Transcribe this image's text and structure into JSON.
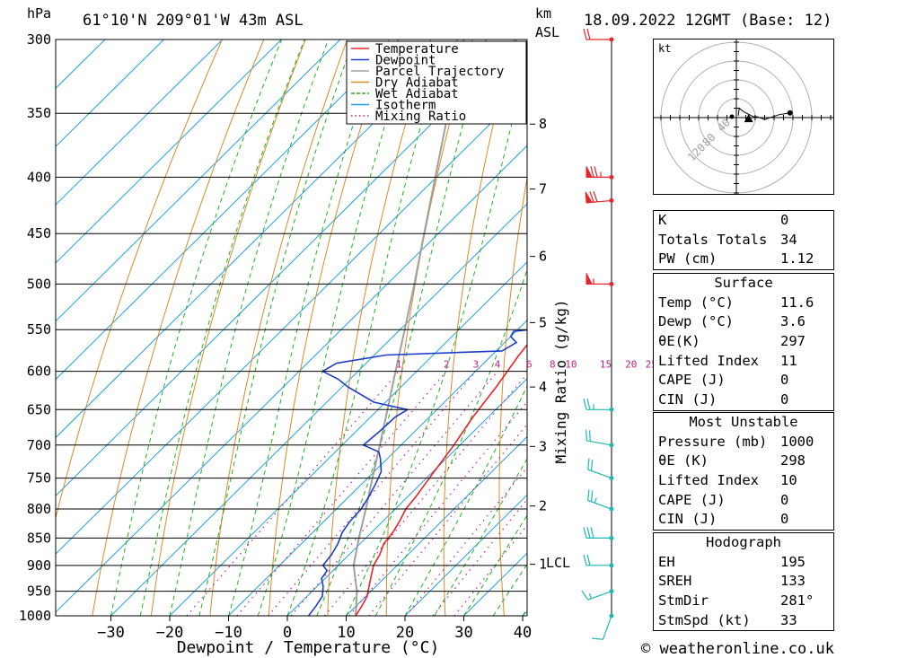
{
  "header": {
    "pressure_unit": "hPa",
    "location": "61°10'N  209°01'W  43m  ASL",
    "height_unit_km": "km",
    "height_unit_asl": "ASL",
    "datetime": "18.09.2022  12GMT  (Base: 12)"
  },
  "chart_data": {
    "type": "line",
    "title": "",
    "xlabel": "Dewpoint / Temperature (°C)",
    "ylabel": "hPa",
    "right_label": "Mixing Ratio (g/kg)",
    "y_scale": "log",
    "ylim": [
      1000,
      300
    ],
    "xlim": [
      -40,
      40
    ],
    "x_ticks": [
      "−30",
      "−20",
      "−10",
      "0",
      "10",
      "20",
      "30",
      "40"
    ],
    "pressure_levels": [
      300,
      350,
      400,
      450,
      500,
      550,
      600,
      650,
      700,
      750,
      800,
      850,
      900,
      950,
      1000
    ],
    "km_labels": [
      {
        "p": 358,
        "label": "8"
      },
      {
        "p": 410,
        "label": "7"
      },
      {
        "p": 472,
        "label": "6"
      },
      {
        "p": 542,
        "label": "5"
      },
      {
        "p": 620,
        "label": "4"
      },
      {
        "p": 702,
        "label": "3"
      },
      {
        "p": 795,
        "label": "2"
      },
      {
        "p": 898,
        "label": "1"
      }
    ],
    "lcl_label": "LCL",
    "lcl_pressure": 898,
    "mixing_ratio_labels": [
      "1",
      "2",
      "3",
      "4",
      "6",
      "8",
      "10",
      "15",
      "20",
      "25"
    ],
    "legend": {
      "placement": "top-center",
      "entries": [
        {
          "name": "Temperature",
          "color": "#e8242a"
        },
        {
          "name": "Dewpoint",
          "color": "#1e3ccc"
        },
        {
          "name": "Parcel Trajectory",
          "color": "#a0a0a0"
        },
        {
          "name": "Dry Adiabat",
          "color": "#d98a2b"
        },
        {
          "name": "Wet Adiabat",
          "color": "#1fb01f"
        },
        {
          "name": "Isotherm",
          "color": "#20a0e0"
        },
        {
          "name": "Mixing Ratio",
          "color": "#c0208a"
        }
      ]
    },
    "series": [
      {
        "name": "Temperature",
        "points": [
          [
            1000,
            11.6
          ],
          [
            980,
            11.0
          ],
          [
            960,
            10.2
          ],
          [
            940,
            8.8
          ],
          [
            920,
            7.4
          ],
          [
            900,
            6.0
          ],
          [
            880,
            5.2
          ],
          [
            860,
            4.0
          ],
          [
            840,
            3.6
          ],
          [
            820,
            2.8
          ],
          [
            800,
            1.8
          ],
          [
            780,
            1.4
          ],
          [
            760,
            0.8
          ],
          [
            740,
            0.2
          ],
          [
            720,
            -0.4
          ],
          [
            700,
            -1.0
          ],
          [
            680,
            -1.8
          ],
          [
            660,
            -2.6
          ],
          [
            640,
            -3.2
          ],
          [
            620,
            -3.8
          ],
          [
            600,
            -4.6
          ],
          [
            580,
            -5.4
          ],
          [
            560,
            -6.0
          ],
          [
            540,
            -7.4
          ],
          [
            520,
            -8.6
          ],
          [
            500,
            -9.8
          ],
          [
            480,
            -11.2
          ],
          [
            460,
            -12.6
          ],
          [
            440,
            -14.4
          ],
          [
            420,
            -16.2
          ],
          [
            400,
            -17.8
          ],
          [
            380,
            -20.0
          ],
          [
            360,
            -22.2
          ],
          [
            340,
            -25.6
          ],
          [
            320,
            -29.0
          ],
          [
            300,
            -32.4
          ]
        ]
      },
      {
        "name": "Dewpoint",
        "points": [
          [
            1000,
            3.6
          ],
          [
            980,
            3.2
          ],
          [
            960,
            2.6
          ],
          [
            940,
            1.0
          ],
          [
            925,
            -0.6
          ],
          [
            910,
            -1.0
          ],
          [
            900,
            -2.6
          ],
          [
            880,
            -3.0
          ],
          [
            860,
            -3.8
          ],
          [
            840,
            -5.0
          ],
          [
            820,
            -5.6
          ],
          [
            800,
            -5.8
          ],
          [
            780,
            -6.6
          ],
          [
            760,
            -7.6
          ],
          [
            740,
            -8.8
          ],
          [
            720,
            -11.2
          ],
          [
            710,
            -12.6
          ],
          [
            700,
            -16.4
          ],
          [
            680,
            -16.0
          ],
          [
            660,
            -15.8
          ],
          [
            650,
            -15.0
          ],
          [
            640,
            -22.0
          ],
          [
            620,
            -29.0
          ],
          [
            610,
            -32.0
          ],
          [
            600,
            -36.0
          ],
          [
            590,
            -35.0
          ],
          [
            580,
            -28.0
          ],
          [
            575,
            -9.0
          ],
          [
            565,
            -8.0
          ],
          [
            558,
            -10.0
          ],
          [
            552,
            -10.4
          ],
          [
            545,
            -1.4
          ],
          [
            535,
            -3.8
          ],
          [
            525,
            -2.4
          ],
          [
            510,
            -0.8
          ],
          [
            495,
            -2.0
          ],
          [
            480,
            -2.0
          ],
          [
            472,
            -15.0
          ],
          [
            470,
            -17.0
          ],
          [
            460,
            -9.0
          ],
          [
            448,
            -7.0
          ],
          [
            440,
            -6.0
          ],
          [
            430,
            -4.6
          ],
          [
            420,
            -4.6
          ],
          [
            410,
            -11.0
          ],
          [
            400,
            -15.0
          ],
          [
            395,
            -14.0
          ],
          [
            385,
            -21.0
          ],
          [
            378,
            -16.0
          ],
          [
            372,
            -10.5
          ],
          [
            360,
            -3.0
          ],
          [
            350,
            -3.0
          ],
          [
            330,
            -1.8
          ],
          [
            315,
            -0.6
          ],
          [
            300,
            -0.6
          ]
        ]
      },
      {
        "name": "Parcel Trajectory",
        "points": [
          [
            1000,
            11.6
          ],
          [
            950,
            7.6
          ],
          [
            900,
            2.6
          ],
          [
            850,
            -1.2
          ],
          [
            800,
            -5.0
          ],
          [
            750,
            -9.2
          ],
          [
            700,
            -13.6
          ],
          [
            650,
            -18.4
          ],
          [
            600,
            -23.6
          ],
          [
            550,
            -29.2
          ],
          [
            500,
            -35.4
          ],
          [
            450,
            -42.4
          ],
          [
            400,
            -50.2
          ],
          [
            350,
            -59.0
          ],
          [
            300,
            -69.0
          ]
        ]
      }
    ],
    "wind_barbs": [
      {
        "p": 1000,
        "direction": 200,
        "speed_kt": 10
      },
      {
        "p": 950,
        "direction": 250,
        "speed_kt": 15
      },
      {
        "p": 900,
        "direction": 270,
        "speed_kt": 20
      },
      {
        "p": 850,
        "direction": 270,
        "speed_kt": 30
      },
      {
        "p": 800,
        "direction": 290,
        "speed_kt": 25
      },
      {
        "p": 750,
        "direction": 290,
        "speed_kt": 20
      },
      {
        "p": 700,
        "direction": 280,
        "speed_kt": 20
      },
      {
        "p": 650,
        "direction": 270,
        "speed_kt": 25
      },
      {
        "p": 500,
        "direction": 270,
        "speed_kt": 55
      },
      {
        "p": 420,
        "direction": 265,
        "speed_kt": 70
      },
      {
        "p": 400,
        "direction": 270,
        "speed_kt": 75
      },
      {
        "p": 300,
        "direction": 270,
        "speed_kt": 20
      }
    ]
  },
  "hodograph": {
    "unit": "kt",
    "ring_labels": [
      "40",
      "80",
      "120"
    ],
    "trace_kt": [
      [
        2,
        2
      ],
      [
        3,
        10
      ],
      [
        8,
        6
      ],
      [
        14,
        3
      ],
      [
        18,
        1
      ],
      [
        22,
        1
      ],
      [
        30,
        -2
      ],
      [
        45,
        3
      ],
      [
        57,
        5
      ]
    ],
    "storm_motion_kt": [
      13,
      -2
    ],
    "storm_color": "#000000"
  },
  "indices": [
    {
      "label": "K",
      "value": "0"
    },
    {
      "label": "Totals Totals",
      "value": "34"
    },
    {
      "label": "PW (cm)",
      "value": "1.12"
    }
  ],
  "surface": {
    "title": "Surface",
    "rows": [
      {
        "label": "Temp (°C)",
        "value": "11.6"
      },
      {
        "label": "Dewp (°C)",
        "value": "3.6"
      },
      {
        "label": "θE(K)",
        "value": "297"
      },
      {
        "label": "Lifted Index",
        "value": "11"
      },
      {
        "label": "CAPE (J)",
        "value": "0"
      },
      {
        "label": "CIN (J)",
        "value": "0"
      }
    ]
  },
  "most_unstable": {
    "title": "Most Unstable",
    "rows": [
      {
        "label": "Pressure (mb)",
        "value": "1000"
      },
      {
        "label": "θE (K)",
        "value": "298"
      },
      {
        "label": "Lifted Index",
        "value": "10"
      },
      {
        "label": "CAPE (J)",
        "value": "0"
      },
      {
        "label": "CIN (J)",
        "value": "0"
      }
    ]
  },
  "hodo_table": {
    "title": "Hodograph",
    "rows": [
      {
        "label": "EH",
        "value": "195"
      },
      {
        "label": "SREH",
        "value": "133"
      },
      {
        "label": "StmDir",
        "value": "281°"
      },
      {
        "label": "StmSpd (kt)",
        "value": "33"
      }
    ]
  },
  "footer": {
    "credit": "© weatheronline.co.uk"
  }
}
